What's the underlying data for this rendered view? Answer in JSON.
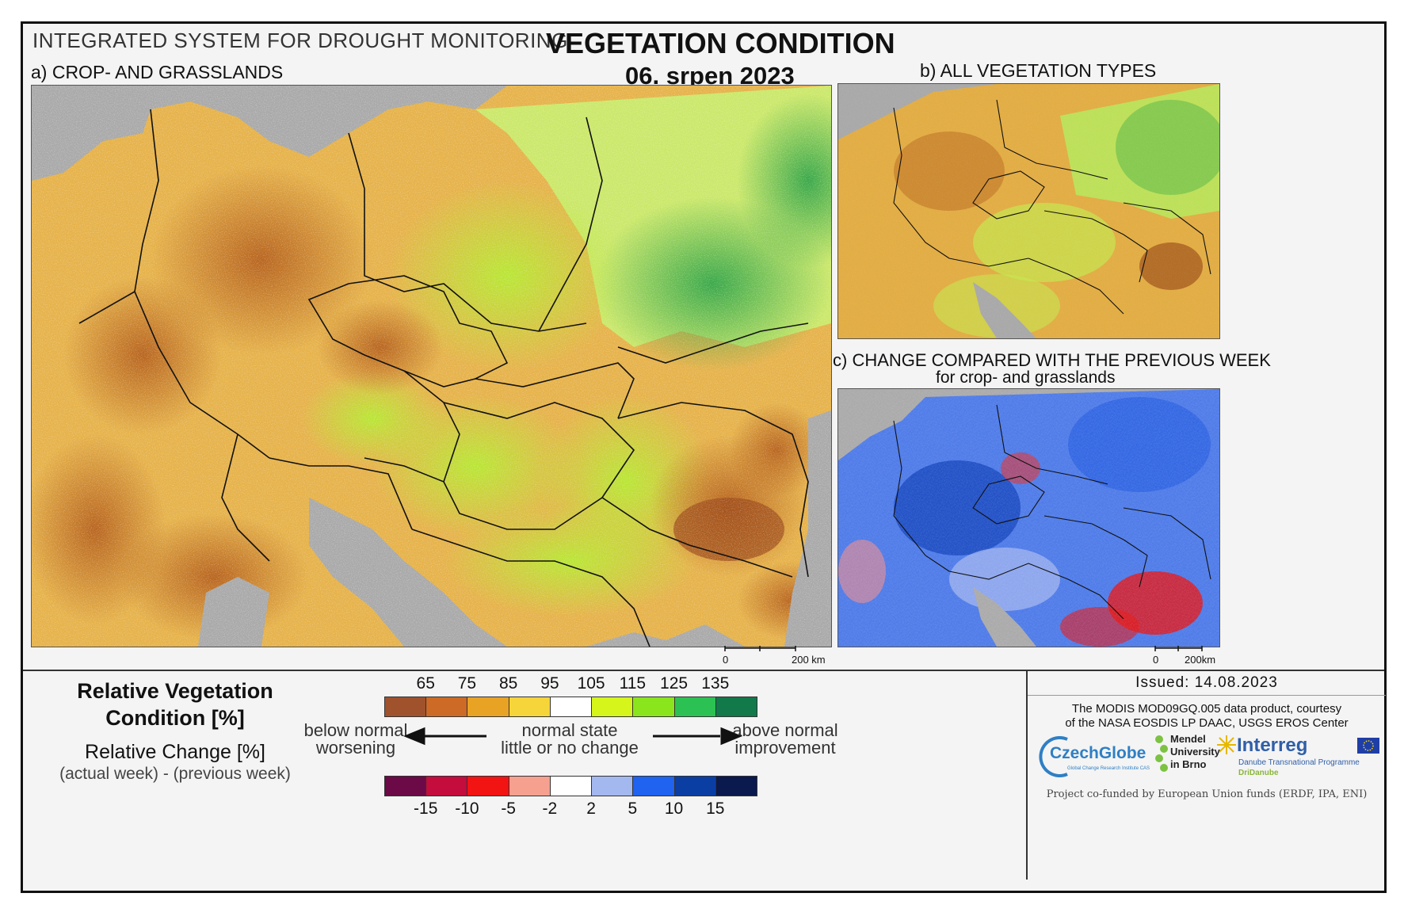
{
  "header": {
    "system_title": "INTEGRATED SYSTEM FOR DROUGHT MONITORING",
    "title": "VEGETATION CONDITION",
    "date": "06. srpen 2023"
  },
  "panels": {
    "a_label": "a) CROP- AND GRASSLANDS",
    "b_label": "b) ALL VEGETATION TYPES",
    "c_label": "c) CHANGE COMPARED WITH THE PREVIOUS WEEK",
    "c_sublabel": "for crop- and grasslands"
  },
  "scalebars": {
    "main_zero": "0",
    "main_km": "200 km",
    "c_zero": "0",
    "c_km": "200km"
  },
  "legend": {
    "rvc_title_line1": "Relative Vegetation",
    "rvc_title_line2": "Condition [%]",
    "rc_title": "Relative Change [%]",
    "rc_subtitle": "(actual week) - (previous week)",
    "rvc_ticks": [
      "65",
      "75",
      "85",
      "95",
      "105",
      "115",
      "125",
      "135"
    ],
    "rvc_colors": [
      "#a0522d",
      "#cd6a25",
      "#e8a325",
      "#f6d53a",
      "#ffffff",
      "#d6f51b",
      "#8ae51c",
      "#2cc253",
      "#11794a"
    ],
    "rc_ticks": [
      "-15",
      "-10",
      "-5",
      "-2",
      "2",
      "5",
      "10",
      "15"
    ],
    "rc_colors": [
      "#6b0a46",
      "#c40c3d",
      "#f21313",
      "#f6a090",
      "#ffffff",
      "#a4b8f0",
      "#1f63f0",
      "#0b3ea3",
      "#0a1a4f"
    ],
    "below_line1": "below normal",
    "below_line2": "worsening",
    "normal_line1": "normal state",
    "normal_line2": "little or no change",
    "above_line1": "above normal",
    "above_line2": "improvement"
  },
  "credits": {
    "issued": "Issued: 14.08.2023",
    "data_line1": "The MODIS MOD09GQ.005 data product, courtesy",
    "data_line2": "of the NASA EOSDIS LP DAAC, USGS EROS Center",
    "czechglobe": "CzechGlobe",
    "czechglobe_sub": "Global Change Research Institute CAS",
    "mendel_line1": "Mendel",
    "mendel_line2": "University",
    "mendel_line3": "in Brno",
    "interreg": "Interreg",
    "interreg_sub1": "Danube Transnational Programme",
    "interreg_sub2": "DriDanube",
    "cofund": "Project co-funded by European Union funds (ERDF, IPA, ENI)"
  }
}
